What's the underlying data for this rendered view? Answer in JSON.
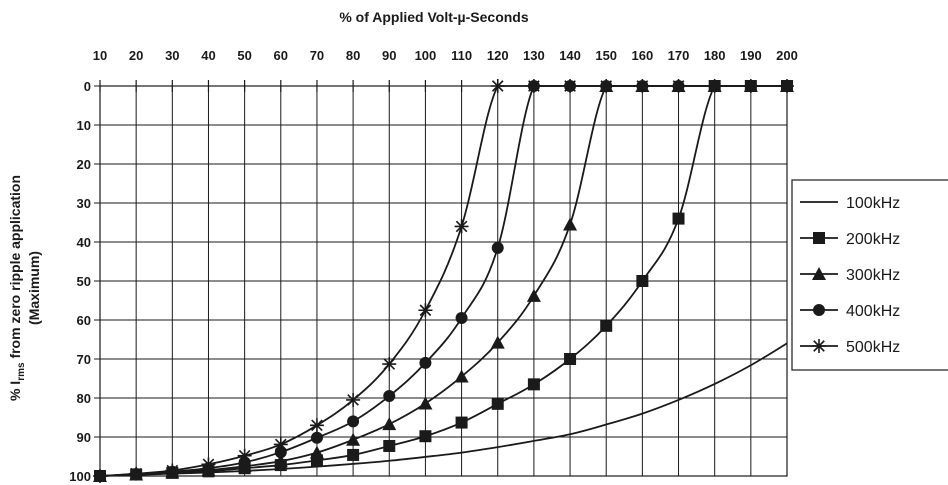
{
  "chart_data": {
    "type": "line",
    "title": "% of Applied Volt-µ-Seconds",
    "xlabel": "% of Applied Volt-µ-Seconds",
    "ylabel": {
      "line1_prefix": "% I",
      "line1_sub": "rms",
      "line1_suffix": " from zero ripple application",
      "line2": "(Maximum)"
    },
    "xlim": [
      10,
      200
    ],
    "ylim": [
      0,
      100
    ],
    "y_inverted": true,
    "x_ticks": [
      "10",
      "20",
      "30",
      "40",
      "50",
      "60",
      "70",
      "80",
      "90",
      "100",
      "110",
      "120",
      "130",
      "140",
      "150",
      "160",
      "170",
      "180",
      "190",
      "200"
    ],
    "y_ticks": [
      "0",
      "10",
      "20",
      "30",
      "40",
      "50",
      "60",
      "70",
      "80",
      "90",
      "100"
    ],
    "grid": true,
    "legend_position": "right",
    "series": [
      {
        "name": "100kHz",
        "marker": "none",
        "x": [
          10,
          20,
          30,
          40,
          50,
          60,
          70,
          80,
          90,
          100,
          110,
          120,
          130,
          140,
          150,
          160,
          170,
          180,
          190,
          200
        ],
        "y": [
          100,
          99.7,
          99.4,
          99.1,
          98.7,
          98.2,
          97.6,
          96.9,
          96.1,
          95.1,
          94.0,
          92.6,
          91.0,
          89.3,
          86.8,
          84.0,
          80.5,
          76.4,
          71.6,
          66.0
        ]
      },
      {
        "name": "200kHz",
        "marker": "square",
        "x": [
          10,
          20,
          30,
          40,
          50,
          60,
          70,
          80,
          90,
          100,
          110,
          120,
          130,
          140,
          150,
          160,
          170,
          180,
          190,
          200
        ],
        "y": [
          100,
          99.6,
          99.2,
          98.8,
          98.0,
          97.2,
          96.0,
          94.6,
          92.3,
          89.8,
          86.3,
          81.5,
          76.5,
          70.0,
          61.5,
          50.0,
          34.0,
          0,
          0,
          0
        ]
      },
      {
        "name": "300kHz",
        "marker": "triangle",
        "x": [
          10,
          20,
          30,
          40,
          50,
          60,
          70,
          80,
          90,
          100,
          110,
          120,
          130,
          140,
          150,
          160,
          170,
          180,
          190,
          200
        ],
        "y": [
          100,
          99.6,
          99.1,
          98.5,
          97.5,
          96.2,
          94.0,
          90.7,
          86.7,
          81.4,
          74.5,
          65.8,
          53.8,
          35.5,
          0,
          0,
          0,
          0,
          0,
          0
        ]
      },
      {
        "name": "400kHz",
        "marker": "circle",
        "x": [
          10,
          20,
          30,
          40,
          50,
          60,
          70,
          80,
          90,
          100,
          110,
          120,
          130,
          140,
          150,
          160,
          170,
          180,
          190,
          200
        ],
        "y": [
          100,
          99.5,
          98.9,
          98.0,
          96.5,
          93.9,
          90.2,
          86.0,
          79.5,
          71.0,
          59.5,
          41.5,
          0,
          0,
          0,
          0,
          0,
          0,
          0,
          0
        ]
      },
      {
        "name": "500kHz",
        "marker": "star",
        "x": [
          10,
          20,
          30,
          40,
          50,
          60,
          70,
          80,
          90,
          100,
          110,
          120,
          130,
          140,
          150,
          160,
          170,
          180,
          190,
          200
        ],
        "y": [
          100,
          99.4,
          98.6,
          97.0,
          94.8,
          91.9,
          87.0,
          80.5,
          71.3,
          57.5,
          36.0,
          0,
          0,
          0,
          0,
          0,
          0,
          0,
          0,
          0
        ]
      }
    ]
  }
}
